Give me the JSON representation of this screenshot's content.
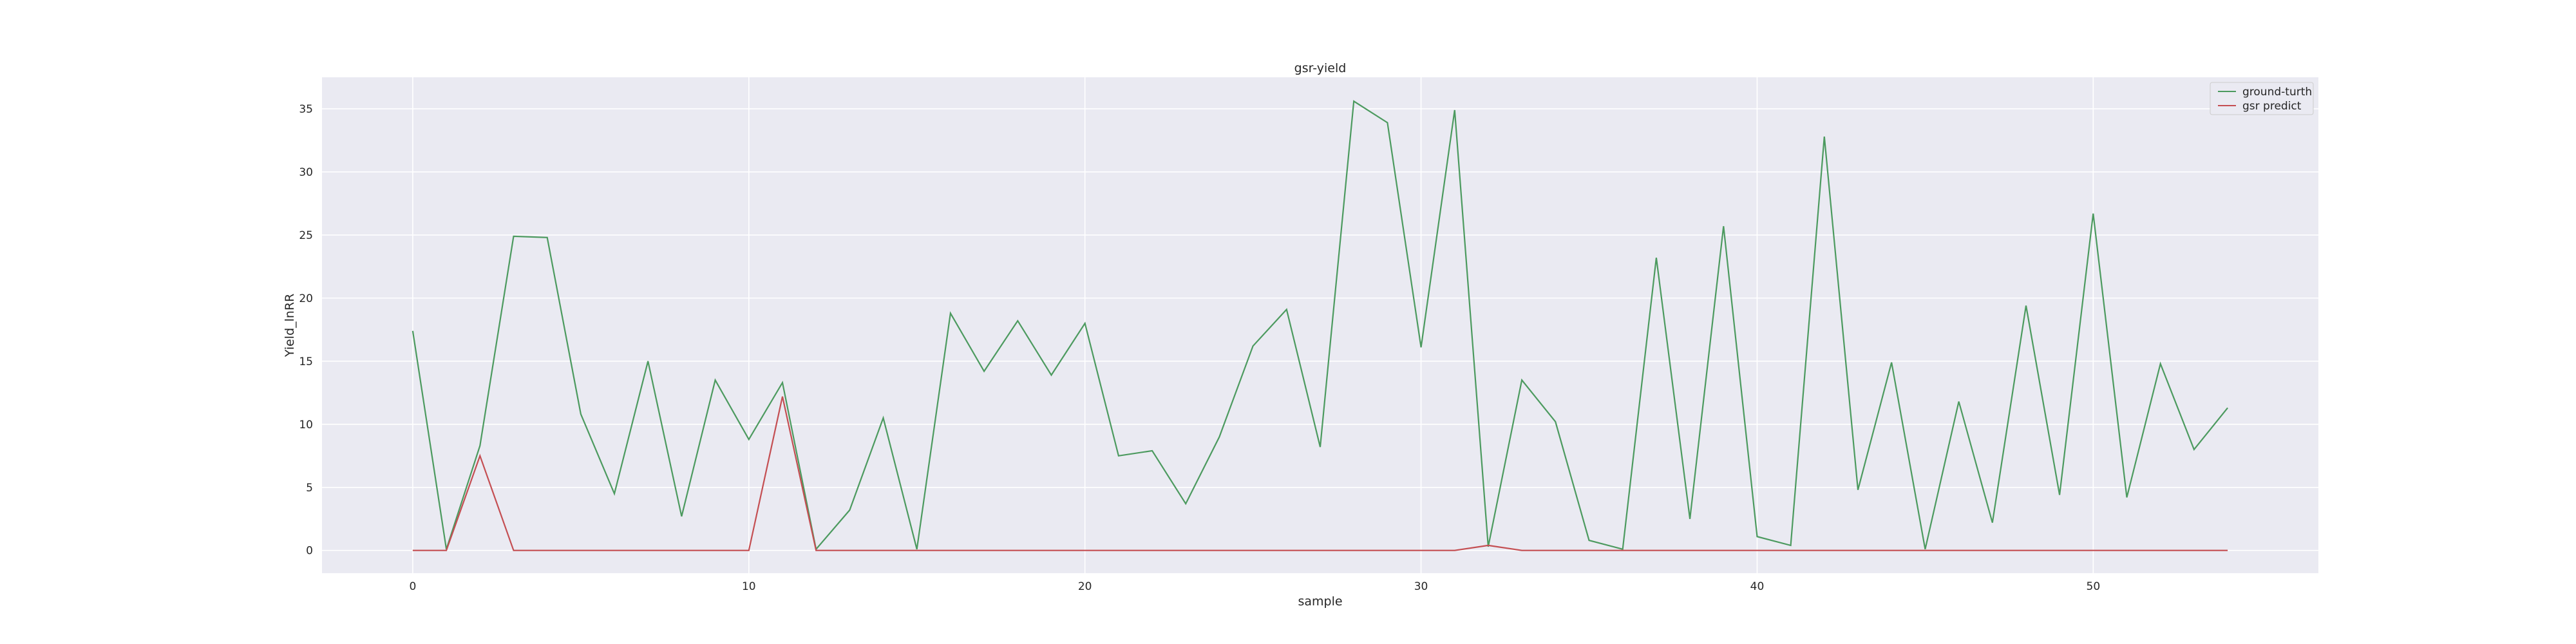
{
  "chart_data": {
    "type": "line",
    "title": "gsr-yield",
    "xlabel": "sample",
    "ylabel": "Yield_lnRR",
    "x": [
      0,
      1,
      2,
      3,
      4,
      5,
      6,
      7,
      8,
      9,
      10,
      11,
      12,
      13,
      14,
      15,
      16,
      17,
      18,
      19,
      20,
      21,
      22,
      23,
      24,
      25,
      26,
      27,
      28,
      29,
      30,
      31,
      32,
      33,
      34,
      35,
      36,
      37,
      38,
      39,
      40,
      41,
      42,
      43,
      44,
      45,
      46,
      47,
      48,
      49,
      50,
      51,
      52,
      53,
      54
    ],
    "xlim": [
      -2.7,
      56.7
    ],
    "ylim": [
      -1.8,
      37.5
    ],
    "xticks": [
      0,
      10,
      20,
      30,
      40,
      50
    ],
    "yticks": [
      0,
      5,
      10,
      15,
      20,
      25,
      30,
      35
    ],
    "grid": true,
    "legend_position": "top-right",
    "series": [
      {
        "name": "ground-turth",
        "color": "#4c9a5f",
        "values": [
          17.4,
          0.1,
          8.3,
          24.9,
          24.8,
          10.8,
          4.5,
          15.0,
          2.7,
          13.5,
          8.8,
          13.3,
          0.1,
          3.2,
          10.5,
          0.1,
          18.8,
          14.2,
          18.2,
          13.9,
          18.0,
          7.5,
          7.9,
          3.7,
          9.0,
          16.2,
          19.1,
          8.2,
          35.6,
          33.9,
          16.1,
          34.9,
          0.3,
          13.5,
          10.2,
          0.8,
          0.1,
          23.2,
          2.5,
          25.7,
          1.1,
          0.4,
          32.8,
          4.8,
          14.9,
          0.1,
          11.8,
          2.2,
          19.4,
          4.4,
          26.7,
          4.2,
          14.8,
          8.0,
          11.3
        ]
      },
      {
        "name": "gsr predict",
        "color": "#c44e52",
        "values": [
          0.0,
          0.0,
          7.5,
          0.0,
          0.0,
          0.0,
          0.0,
          0.0,
          0.0,
          0.0,
          0.0,
          12.2,
          0.0,
          0.0,
          0.0,
          0.0,
          0.0,
          0.0,
          0.0,
          0.0,
          0.0,
          0.0,
          0.0,
          0.0,
          0.0,
          0.0,
          0.0,
          0.0,
          0.0,
          0.0,
          0.0,
          0.0,
          0.4,
          0.0,
          0.0,
          0.0,
          0.0,
          0.0,
          0.0,
          0.0,
          0.0,
          0.0,
          0.0,
          0.0,
          0.0,
          0.0,
          0.0,
          0.0,
          0.0,
          0.0,
          0.0,
          0.0,
          0.0,
          0.0,
          0.0
        ]
      }
    ]
  }
}
